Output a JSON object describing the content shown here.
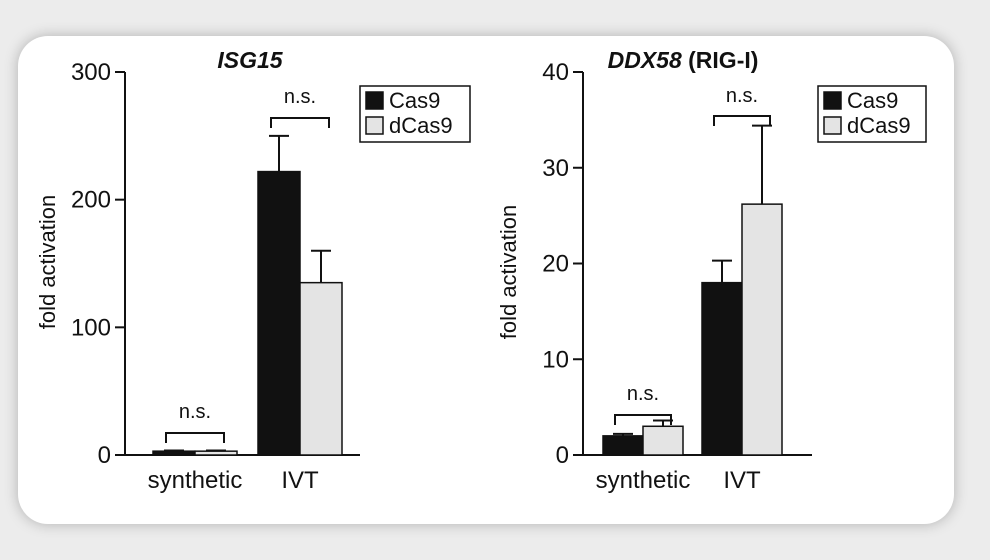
{
  "colors": {
    "Cas9": "#111111",
    "dCas9": "#e4e4e4",
    "stroke": "#111111",
    "background": "#ececec"
  },
  "chart_data": [
    {
      "type": "bar",
      "title_italic": "ISG15",
      "title_rest": "",
      "ylabel": "fold activation",
      "ylim": [
        0,
        300
      ],
      "yticks": [
        0,
        100,
        200,
        300
      ],
      "categories": [
        "synthetic",
        "IVT"
      ],
      "series": [
        {
          "name": "Cas9",
          "values": [
            3,
            222
          ],
          "errors": [
            0.5,
            28
          ]
        },
        {
          "name": "dCas9",
          "values": [
            3,
            135
          ],
          "errors": [
            0.5,
            25
          ]
        }
      ],
      "annotations": [
        "n.s.",
        "n.s."
      ],
      "legend_position": "top-right"
    },
    {
      "type": "bar",
      "title_italic": "DDX58",
      "title_rest": " (RIG-I)",
      "ylabel": "fold activation",
      "ylim": [
        0,
        40
      ],
      "yticks": [
        0,
        10,
        20,
        30,
        40
      ],
      "categories": [
        "synthetic",
        "IVT"
      ],
      "series": [
        {
          "name": "Cas9",
          "values": [
            2,
            18
          ],
          "errors": [
            0.2,
            2.3
          ]
        },
        {
          "name": "dCas9",
          "values": [
            3,
            26.2
          ],
          "errors": [
            0.6,
            8.2
          ]
        }
      ],
      "annotations": [
        "n.s.",
        "n.s."
      ],
      "legend_position": "top-right"
    }
  ]
}
